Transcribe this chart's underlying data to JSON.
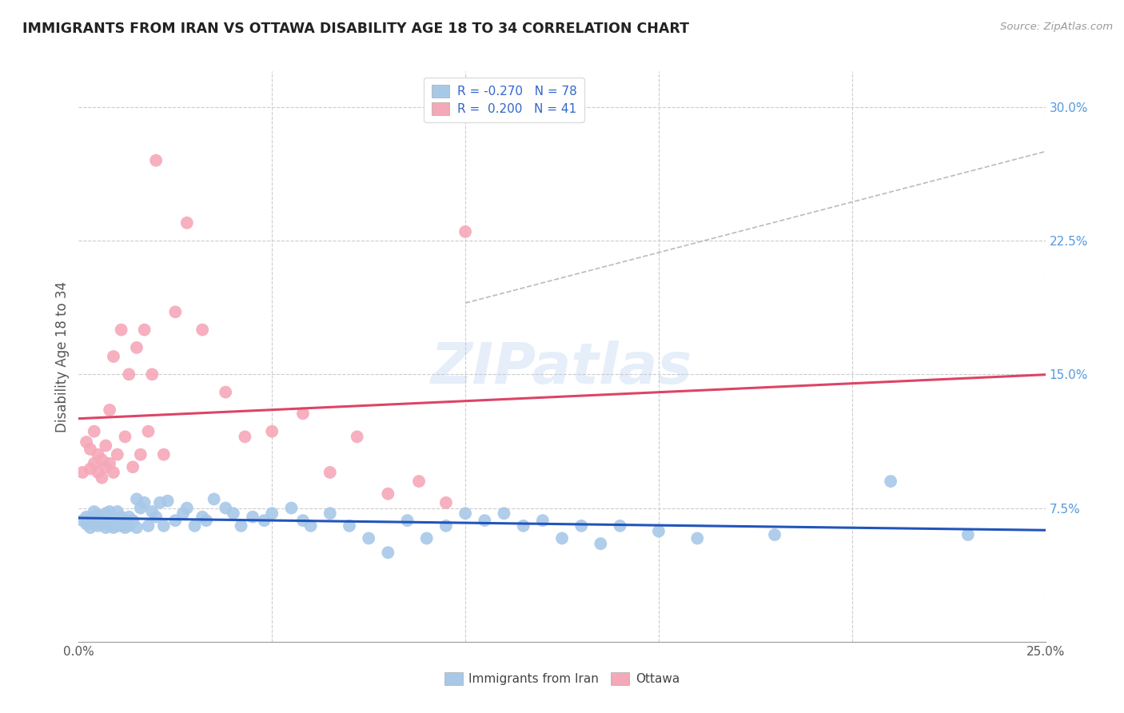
{
  "title": "IMMIGRANTS FROM IRAN VS OTTAWA DISABILITY AGE 18 TO 34 CORRELATION CHART",
  "source": "Source: ZipAtlas.com",
  "ylabel": "Disability Age 18 to 34",
  "xlim": [
    0.0,
    0.25
  ],
  "ylim": [
    0.0,
    0.32
  ],
  "y_ticks_right": [
    0.075,
    0.15,
    0.225,
    0.3
  ],
  "y_tick_labels_right": [
    "7.5%",
    "15.0%",
    "22.5%",
    "30.0%"
  ],
  "legend_label1": "Immigrants from Iran",
  "legend_label2": "Ottawa",
  "color_blue": "#a8c8e8",
  "color_pink": "#f5a8b8",
  "color_line_blue": "#2255bb",
  "color_line_pink": "#dd4466",
  "watermark": "ZIPatlas",
  "blue_points_x": [
    0.001,
    0.002,
    0.002,
    0.003,
    0.003,
    0.004,
    0.004,
    0.004,
    0.005,
    0.005,
    0.005,
    0.006,
    0.006,
    0.007,
    0.007,
    0.007,
    0.008,
    0.008,
    0.008,
    0.009,
    0.009,
    0.01,
    0.01,
    0.01,
    0.011,
    0.011,
    0.012,
    0.012,
    0.013,
    0.013,
    0.014,
    0.015,
    0.015,
    0.016,
    0.017,
    0.018,
    0.019,
    0.02,
    0.021,
    0.022,
    0.023,
    0.025,
    0.027,
    0.028,
    0.03,
    0.032,
    0.033,
    0.035,
    0.038,
    0.04,
    0.042,
    0.045,
    0.048,
    0.05,
    0.055,
    0.058,
    0.06,
    0.065,
    0.07,
    0.075,
    0.08,
    0.085,
    0.09,
    0.095,
    0.1,
    0.105,
    0.11,
    0.115,
    0.12,
    0.125,
    0.13,
    0.135,
    0.14,
    0.15,
    0.16,
    0.18,
    0.21,
    0.23
  ],
  "blue_points_y": [
    0.068,
    0.066,
    0.07,
    0.064,
    0.069,
    0.066,
    0.07,
    0.073,
    0.065,
    0.068,
    0.071,
    0.066,
    0.07,
    0.064,
    0.068,
    0.072,
    0.065,
    0.069,
    0.073,
    0.064,
    0.068,
    0.065,
    0.069,
    0.073,
    0.065,
    0.07,
    0.064,
    0.068,
    0.065,
    0.07,
    0.068,
    0.064,
    0.08,
    0.075,
    0.078,
    0.065,
    0.073,
    0.07,
    0.078,
    0.065,
    0.079,
    0.068,
    0.072,
    0.075,
    0.065,
    0.07,
    0.068,
    0.08,
    0.075,
    0.072,
    0.065,
    0.07,
    0.068,
    0.072,
    0.075,
    0.068,
    0.065,
    0.072,
    0.065,
    0.058,
    0.05,
    0.068,
    0.058,
    0.065,
    0.072,
    0.068,
    0.072,
    0.065,
    0.068,
    0.058,
    0.065,
    0.055,
    0.065,
    0.062,
    0.058,
    0.06,
    0.09,
    0.06
  ],
  "pink_points_x": [
    0.001,
    0.002,
    0.003,
    0.003,
    0.004,
    0.004,
    0.005,
    0.005,
    0.006,
    0.006,
    0.007,
    0.007,
    0.008,
    0.008,
    0.009,
    0.009,
    0.01,
    0.011,
    0.012,
    0.013,
    0.014,
    0.015,
    0.016,
    0.017,
    0.018,
    0.019,
    0.02,
    0.022,
    0.025,
    0.028,
    0.032,
    0.038,
    0.043,
    0.05,
    0.058,
    0.065,
    0.072,
    0.08,
    0.088,
    0.095,
    0.1
  ],
  "pink_points_y": [
    0.095,
    0.112,
    0.097,
    0.108,
    0.1,
    0.118,
    0.095,
    0.105,
    0.092,
    0.102,
    0.098,
    0.11,
    0.1,
    0.13,
    0.095,
    0.16,
    0.105,
    0.175,
    0.115,
    0.15,
    0.098,
    0.165,
    0.105,
    0.175,
    0.118,
    0.15,
    0.27,
    0.105,
    0.185,
    0.235,
    0.175,
    0.14,
    0.115,
    0.118,
    0.128,
    0.095,
    0.115,
    0.083,
    0.09,
    0.078,
    0.23
  ]
}
